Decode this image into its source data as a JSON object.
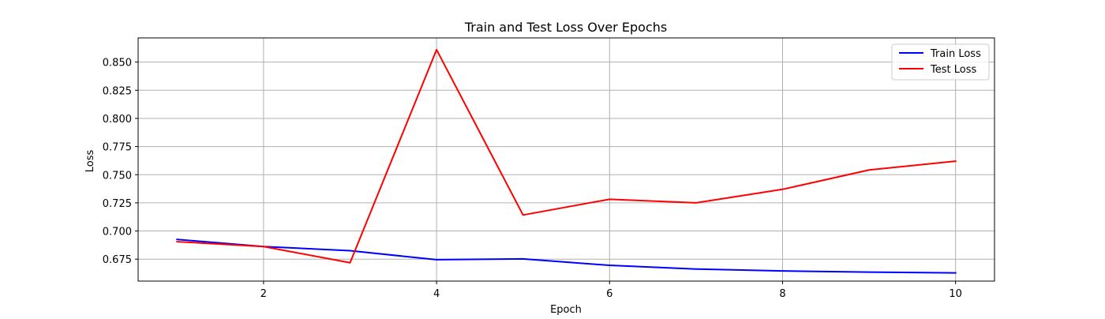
{
  "chart_data": {
    "type": "line",
    "title": "Train and Test Loss Over Epochs",
    "xlabel": "Epoch",
    "ylabel": "Loss",
    "x": [
      1,
      2,
      3,
      4,
      5,
      6,
      7,
      8,
      9,
      10
    ],
    "xlim": [
      0.55,
      10.45
    ],
    "ylim": [
      0.6555,
      0.8715
    ],
    "xticks": [
      2,
      4,
      6,
      8,
      10
    ],
    "xtick_labels": [
      "2",
      "4",
      "6",
      "8",
      "10"
    ],
    "yticks": [
      0.675,
      0.7,
      0.725,
      0.75,
      0.775,
      0.8,
      0.825,
      0.85
    ],
    "ytick_labels": [
      "0.675",
      "0.700",
      "0.725",
      "0.750",
      "0.775",
      "0.800",
      "0.825",
      "0.850"
    ],
    "grid": true,
    "legend_position": "top-right",
    "series": [
      {
        "name": "Train Loss",
        "color": "#0000ff",
        "values": [
          0.6925,
          0.6862,
          0.6825,
          0.6745,
          0.6752,
          0.6695,
          0.6662,
          0.6645,
          0.6635,
          0.6628
        ]
      },
      {
        "name": "Test Loss",
        "color": "#ff0000",
        "values": [
          0.6905,
          0.6862,
          0.6718,
          0.861,
          0.7142,
          0.7282,
          0.725,
          0.737,
          0.7542,
          0.762
        ]
      }
    ]
  }
}
